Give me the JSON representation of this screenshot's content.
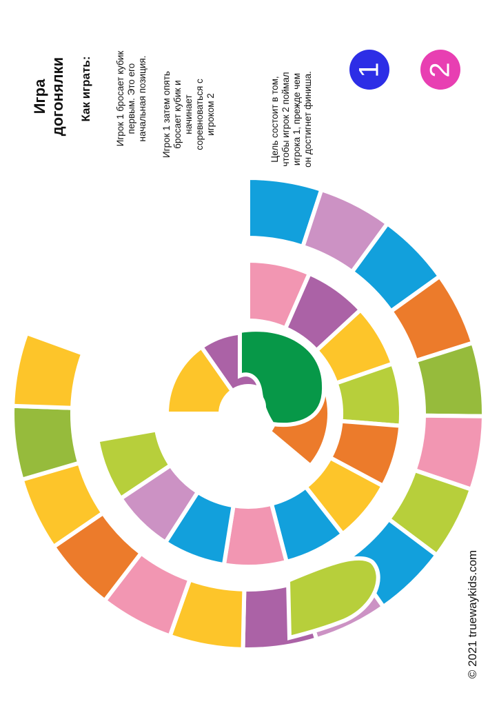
{
  "title_lines": [
    "Игра",
    "догонялки"
  ],
  "how_to": "Как играть:",
  "rules": [
    [
      "Игрок 1 бросает кубик",
      "первым. Это его",
      "начальная позиция."
    ],
    [
      "Игрок 1  затем опять",
      "бросает кубик и",
      "начинает",
      "соревноваться с",
      "игроком 2"
    ],
    [
      "Цель состоит в том,",
      "чтобы игрок 2 поймал",
      "игрока 1, прежде чем",
      "он достигнет финиша."
    ]
  ],
  "players": [
    {
      "label": "1",
      "color": "#2d2ee6"
    },
    {
      "label": "2",
      "color": "#e83fb2"
    }
  ],
  "copyright": "© 2021 truewaykids.com",
  "colors": {
    "blue": "#12a0dc",
    "lilac": "#cc92c4",
    "orange": "#ec7b2b",
    "olive": "#96bb3c",
    "pink": "#f296b2",
    "lime": "#b7cf3b",
    "purple": "#ab62a6",
    "yellow": "#fdc52a",
    "green": "#079848"
  },
  "outer_ring": [
    "blue",
    "lilac",
    "blue",
    "orange",
    "olive",
    "pink",
    "lime",
    "blue",
    "lilac",
    "purple",
    "yellow",
    "pink",
    "orange",
    "yellow",
    "olive",
    "yellow"
  ],
  "middle_ring": [
    "pink",
    "purple",
    "yellow",
    "lime",
    "orange",
    "yellow",
    "blue",
    "pink",
    "blue",
    "lilac",
    "lime"
  ],
  "inner_ring": [
    "yellow",
    "purple",
    "yellow",
    "orange"
  ],
  "finish_color": "green"
}
